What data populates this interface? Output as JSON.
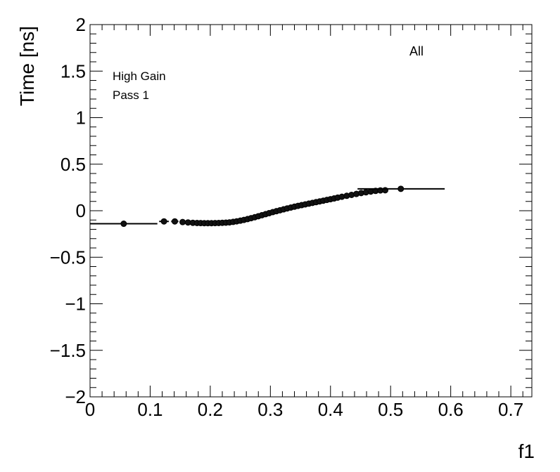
{
  "chart_data": {
    "type": "scatter",
    "title": "",
    "xlabel": "f1",
    "ylabel": "Time [ns]",
    "xlim": [
      0,
      0.735
    ],
    "ylim": [
      -2,
      2
    ],
    "xticks": [
      0,
      0.1,
      0.2,
      0.3,
      0.4,
      0.5,
      0.6,
      0.7
    ],
    "xtick_labels": [
      "0",
      "0.1",
      "0.2",
      "0.3",
      "0.4",
      "0.5",
      "0.6",
      "0.7"
    ],
    "yticks": [
      -2,
      -1.5,
      -1,
      -0.5,
      0,
      0.5,
      1,
      1.5,
      2
    ],
    "ytick_labels": [
      "−2",
      "−1.5",
      "−1",
      "−0.5",
      "0",
      "0.5",
      "1",
      "1.5",
      "2"
    ],
    "grid": false,
    "legend": "none",
    "annotations": {
      "gain": "High Gain",
      "pass": "Pass 1",
      "selection": "All"
    },
    "series": [
      {
        "points": [
          {
            "x": 0.056,
            "y": -0.14,
            "xlo": 0.0,
            "xhi": 0.112
          },
          {
            "x": 0.123,
            "y": -0.115,
            "xlo": 0.115,
            "xhi": 0.131
          },
          {
            "x": 0.141,
            "y": -0.115,
            "xlo": 0.135,
            "xhi": 0.147
          },
          {
            "x": 0.154,
            "y": -0.122,
            "xlo": 0.149,
            "xhi": 0.159
          },
          {
            "x": 0.163,
            "y": -0.126,
            "xlo": 0.159,
            "xhi": 0.167
          },
          {
            "x": 0.171,
            "y": -0.13,
            "xlo": 0.167,
            "xhi": 0.175
          },
          {
            "x": 0.178,
            "y": -0.132,
            "xlo": 0.175,
            "xhi": 0.181
          },
          {
            "x": 0.184,
            "y": -0.133,
            "xlo": 0.181,
            "xhi": 0.187
          },
          {
            "x": 0.19,
            "y": -0.134,
            "xlo": 0.187,
            "xhi": 0.193
          },
          {
            "x": 0.196,
            "y": -0.134,
            "xlo": 0.193,
            "xhi": 0.199
          },
          {
            "x": 0.202,
            "y": -0.134,
            "xlo": 0.199,
            "xhi": 0.205
          },
          {
            "x": 0.208,
            "y": -0.133,
            "xlo": 0.205,
            "xhi": 0.211
          },
          {
            "x": 0.214,
            "y": -0.132,
            "xlo": 0.211,
            "xhi": 0.217
          },
          {
            "x": 0.22,
            "y": -0.13,
            "xlo": 0.217,
            "xhi": 0.223
          },
          {
            "x": 0.226,
            "y": -0.128,
            "xlo": 0.223,
            "xhi": 0.229
          },
          {
            "x": 0.232,
            "y": -0.125,
            "xlo": 0.229,
            "xhi": 0.235
          },
          {
            "x": 0.238,
            "y": -0.12,
            "xlo": 0.235,
            "xhi": 0.241
          },
          {
            "x": 0.244,
            "y": -0.114,
            "xlo": 0.241,
            "xhi": 0.247
          },
          {
            "x": 0.25,
            "y": -0.107,
            "xlo": 0.247,
            "xhi": 0.253
          },
          {
            "x": 0.256,
            "y": -0.099,
            "xlo": 0.253,
            "xhi": 0.259
          },
          {
            "x": 0.262,
            "y": -0.09,
            "xlo": 0.259,
            "xhi": 0.265
          },
          {
            "x": 0.268,
            "y": -0.08,
            "xlo": 0.265,
            "xhi": 0.271
          },
          {
            "x": 0.274,
            "y": -0.07,
            "xlo": 0.271,
            "xhi": 0.277
          },
          {
            "x": 0.28,
            "y": -0.059,
            "xlo": 0.277,
            "xhi": 0.283
          },
          {
            "x": 0.286,
            "y": -0.048,
            "xlo": 0.283,
            "xhi": 0.289
          },
          {
            "x": 0.292,
            "y": -0.037,
            "xlo": 0.289,
            "xhi": 0.295
          },
          {
            "x": 0.298,
            "y": -0.026,
            "xlo": 0.295,
            "xhi": 0.301
          },
          {
            "x": 0.304,
            "y": -0.015,
            "xlo": 0.301,
            "xhi": 0.307
          },
          {
            "x": 0.31,
            "y": -0.005,
            "xlo": 0.307,
            "xhi": 0.313
          },
          {
            "x": 0.316,
            "y": 0.005,
            "xlo": 0.313,
            "xhi": 0.319
          },
          {
            "x": 0.322,
            "y": 0.015,
            "xlo": 0.319,
            "xhi": 0.325
          },
          {
            "x": 0.328,
            "y": 0.025,
            "xlo": 0.325,
            "xhi": 0.331
          },
          {
            "x": 0.334,
            "y": 0.034,
            "xlo": 0.331,
            "xhi": 0.337
          },
          {
            "x": 0.34,
            "y": 0.043,
            "xlo": 0.337,
            "xhi": 0.343
          },
          {
            "x": 0.346,
            "y": 0.052,
            "xlo": 0.343,
            "xhi": 0.349
          },
          {
            "x": 0.352,
            "y": 0.06,
            "xlo": 0.349,
            "xhi": 0.355
          },
          {
            "x": 0.358,
            "y": 0.068,
            "xlo": 0.355,
            "xhi": 0.361
          },
          {
            "x": 0.364,
            "y": 0.076,
            "xlo": 0.361,
            "xhi": 0.367
          },
          {
            "x": 0.37,
            "y": 0.084,
            "xlo": 0.367,
            "xhi": 0.373
          },
          {
            "x": 0.376,
            "y": 0.092,
            "xlo": 0.373,
            "xhi": 0.379
          },
          {
            "x": 0.382,
            "y": 0.1,
            "xlo": 0.379,
            "xhi": 0.385
          },
          {
            "x": 0.388,
            "y": 0.108,
            "xlo": 0.385,
            "xhi": 0.391
          },
          {
            "x": 0.394,
            "y": 0.116,
            "xlo": 0.391,
            "xhi": 0.397
          },
          {
            "x": 0.4,
            "y": 0.124,
            "xlo": 0.397,
            "xhi": 0.403
          },
          {
            "x": 0.406,
            "y": 0.132,
            "xlo": 0.403,
            "xhi": 0.409
          },
          {
            "x": 0.412,
            "y": 0.141,
            "xlo": 0.409,
            "xhi": 0.415
          },
          {
            "x": 0.419,
            "y": 0.15,
            "xlo": 0.415,
            "xhi": 0.423
          },
          {
            "x": 0.427,
            "y": 0.16,
            "xlo": 0.423,
            "xhi": 0.431
          },
          {
            "x": 0.435,
            "y": 0.17,
            "xlo": 0.431,
            "xhi": 0.439
          },
          {
            "x": 0.443,
            "y": 0.18,
            "xlo": 0.439,
            "xhi": 0.447
          },
          {
            "x": 0.451,
            "y": 0.19,
            "xlo": 0.447,
            "xhi": 0.455
          },
          {
            "x": 0.459,
            "y": 0.198,
            "xlo": 0.455,
            "xhi": 0.463
          },
          {
            "x": 0.467,
            "y": 0.206,
            "xlo": 0.463,
            "xhi": 0.471
          },
          {
            "x": 0.475,
            "y": 0.213,
            "xlo": 0.471,
            "xhi": 0.479
          },
          {
            "x": 0.483,
            "y": 0.218,
            "xlo": 0.479,
            "xhi": 0.487
          },
          {
            "x": 0.491,
            "y": 0.22,
            "xlo": 0.487,
            "xhi": 0.495
          },
          {
            "x": 0.517,
            "y": 0.235,
            "xlo": 0.445,
            "xhi": 0.59
          }
        ]
      }
    ]
  }
}
